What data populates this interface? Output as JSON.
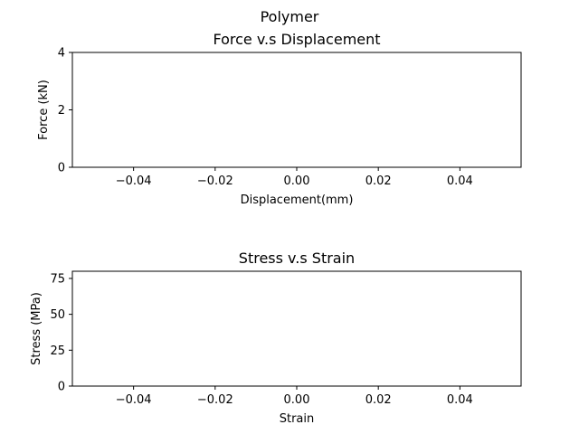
{
  "figure": {
    "suptitle": "Polymer"
  },
  "chart_data": [
    {
      "type": "line",
      "title": "Force v.s Displacement",
      "xlabel": "Displacement(mm)",
      "ylabel": "Force (kN)",
      "xlim": [
        -0.055,
        0.055
      ],
      "ylim": [
        0,
        4
      ],
      "xticks": [
        -0.04,
        -0.02,
        0.0,
        0.02,
        0.04
      ],
      "xtick_labels": [
        "−0.04",
        "−0.02",
        "0.00",
        "0.02",
        "0.04"
      ],
      "yticks": [
        0,
        2,
        4
      ],
      "ytick_labels": [
        "0",
        "2",
        "4"
      ],
      "grid": false,
      "series": []
    },
    {
      "type": "line",
      "title": "Stress v.s Strain",
      "xlabel": "Strain",
      "ylabel": "Stress (MPa)",
      "xlim": [
        -0.055,
        0.055
      ],
      "ylim": [
        0,
        80
      ],
      "xticks": [
        -0.04,
        -0.02,
        0.0,
        0.02,
        0.04
      ],
      "xtick_labels": [
        "−0.04",
        "−0.02",
        "0.00",
        "0.02",
        "0.04"
      ],
      "yticks": [
        0,
        25,
        50,
        75
      ],
      "ytick_labels": [
        "0",
        "25",
        "50",
        "75"
      ],
      "grid": false,
      "series": []
    }
  ]
}
